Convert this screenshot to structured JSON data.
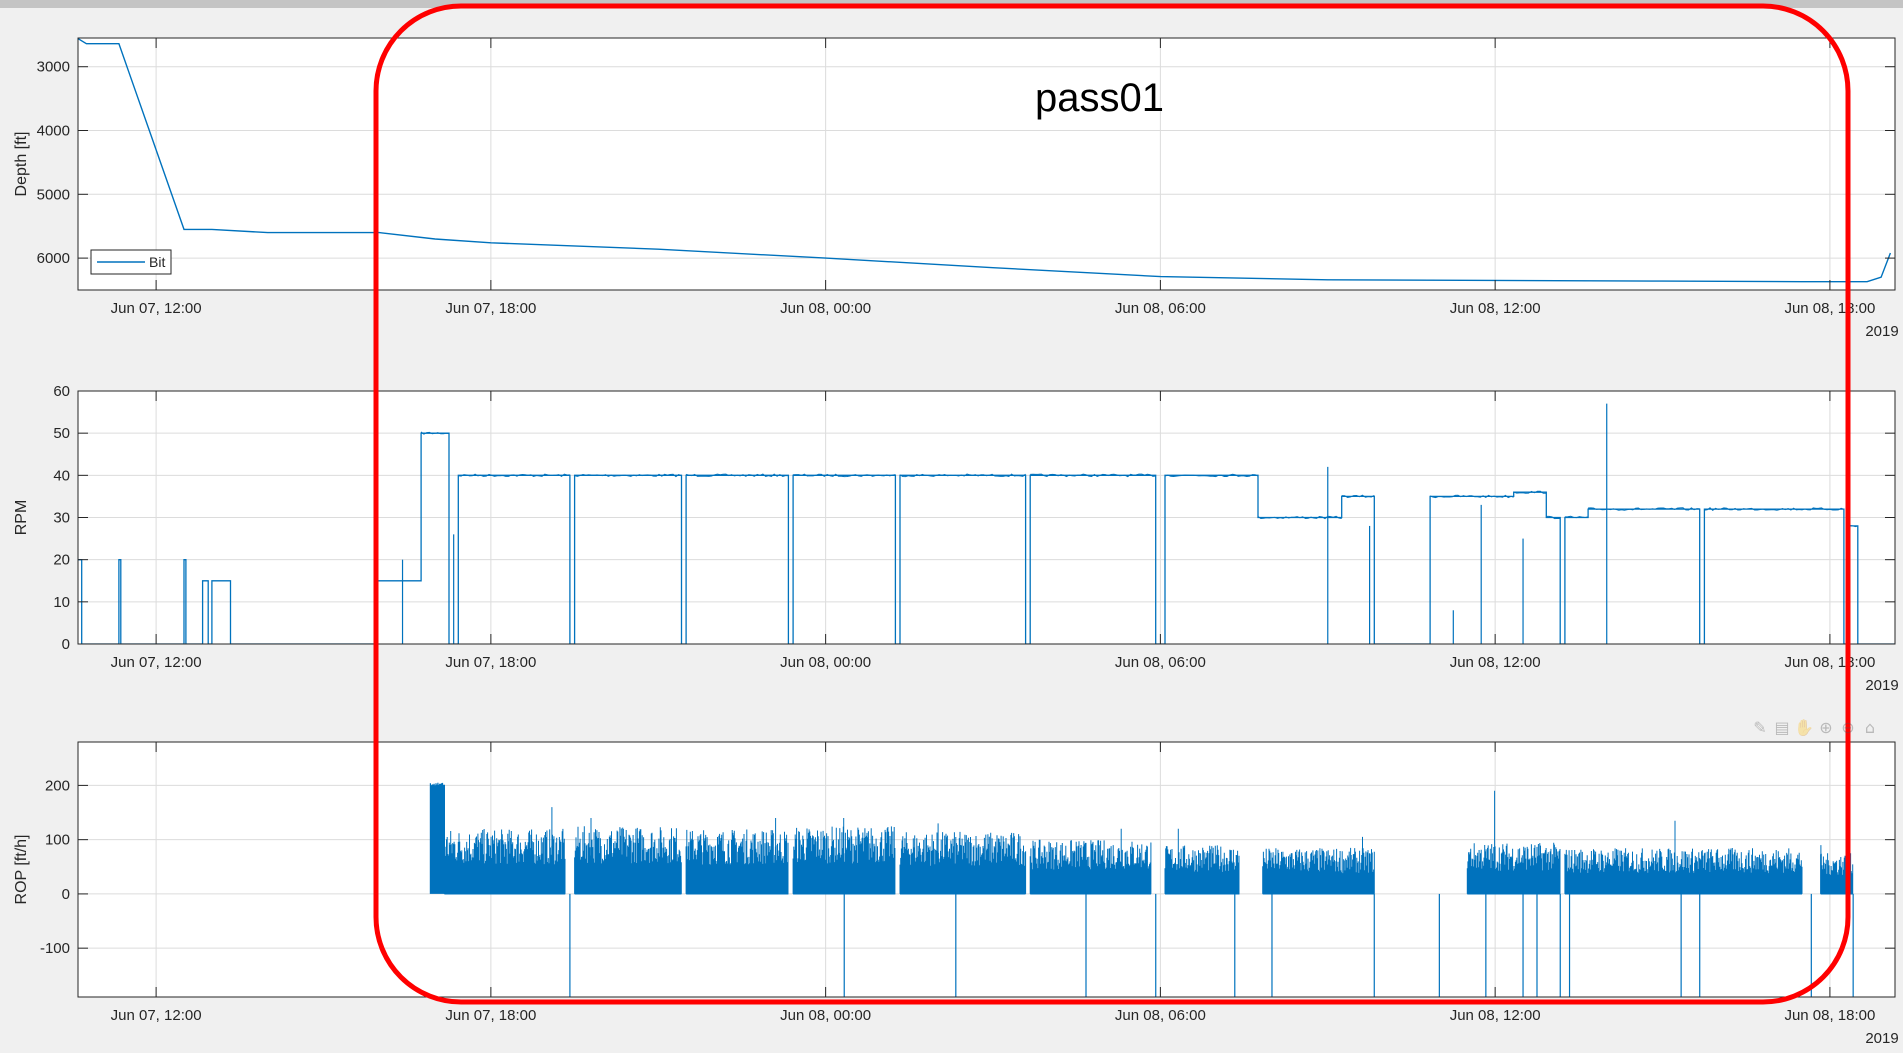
{
  "annotation": {
    "label": "pass01",
    "color": "#ff0000"
  },
  "toolbar": {
    "icons": [
      "✎",
      "▤",
      "✋",
      "⊕",
      "⊖",
      "⌂"
    ]
  },
  "style": {
    "series_color": "#0072bd",
    "grid_color": "#dcdcdc"
  },
  "chart_data": [
    {
      "type": "line",
      "ylabel": "Depth [ft]",
      "y_reversed": true,
      "ylim": [
        2550,
        6500
      ],
      "yticks": [
        3000,
        4000,
        5000,
        6000
      ],
      "xlim": [
        "2019-06-07T10:36",
        "2019-06-08T19:10"
      ],
      "xticks": [
        "2019-06-07T12:00",
        "2019-06-07T18:00",
        "2019-06-08T00:00",
        "2019-06-08T06:00",
        "2019-06-08T12:00",
        "2019-06-08T18:00"
      ],
      "xticklabels": [
        "Jun 07, 12:00",
        "Jun 07, 18:00",
        "Jun 08, 00:00",
        "Jun 08, 06:00",
        "Jun 08, 12:00",
        "Jun 08, 18:00"
      ],
      "year_label": "2019",
      "grid": true,
      "legend": {
        "position": "bottom-left",
        "entries": [
          "Bit"
        ]
      },
      "series": [
        {
          "name": "Bit",
          "x": [
            "2019-06-07T10:36",
            "2019-06-07T10:45",
            "2019-06-07T11:20",
            "2019-06-07T12:30",
            "2019-06-07T13:00",
            "2019-06-07T14:00",
            "2019-06-07T16:00",
            "2019-06-07T17:00",
            "2019-06-07T18:00",
            "2019-06-07T21:00",
            "2019-06-08T00:00",
            "2019-06-08T03:00",
            "2019-06-08T06:00",
            "2019-06-08T09:00",
            "2019-06-08T12:00",
            "2019-06-08T15:00",
            "2019-06-08T17:30",
            "2019-06-08T18:40",
            "2019-06-08T18:55",
            "2019-06-08T19:05"
          ],
          "y": [
            2560,
            2640,
            2640,
            5550,
            5550,
            5600,
            5600,
            5700,
            5760,
            5860,
            6000,
            6150,
            6290,
            6340,
            6350,
            6360,
            6370,
            6370,
            6300,
            5920
          ]
        }
      ]
    },
    {
      "type": "line",
      "ylabel": "RPM",
      "ylim": [
        0,
        60
      ],
      "yticks": [
        0,
        10,
        20,
        30,
        40,
        50,
        60
      ],
      "xlim": [
        "2019-06-07T10:36",
        "2019-06-08T19:10"
      ],
      "xticks": [
        "2019-06-07T12:00",
        "2019-06-07T18:00",
        "2019-06-08T00:00",
        "2019-06-08T06:00",
        "2019-06-08T12:00",
        "2019-06-08T18:00"
      ],
      "xticklabels": [
        "Jun 07, 12:00",
        "Jun 07, 18:00",
        "Jun 08, 00:00",
        "Jun 08, 06:00",
        "Jun 08, 12:00",
        "Jun 08, 18:00"
      ],
      "year_label": "2019",
      "grid": true,
      "segments": [
        [
          "2019-06-07T10:36",
          "2019-06-07T10:40",
          20
        ],
        [
          "2019-06-07T10:40",
          "2019-06-07T11:20",
          0
        ],
        [
          "2019-06-07T11:20",
          "2019-06-07T11:22",
          20
        ],
        [
          "2019-06-07T11:22",
          "2019-06-07T12:30",
          0
        ],
        [
          "2019-06-07T12:30",
          "2019-06-07T12:32",
          20
        ],
        [
          "2019-06-07T12:32",
          "2019-06-07T12:50",
          0
        ],
        [
          "2019-06-07T12:50",
          "2019-06-07T12:56",
          15
        ],
        [
          "2019-06-07T12:56",
          "2019-06-07T13:00",
          0
        ],
        [
          "2019-06-07T13:00",
          "2019-06-07T13:20",
          15
        ],
        [
          "2019-06-07T13:20",
          "2019-06-07T15:55",
          0
        ],
        [
          "2019-06-07T15:55",
          "2019-06-07T16:45",
          15
        ],
        [
          "2019-06-07T16:45",
          "2019-06-07T17:15",
          50
        ],
        [
          "2019-06-07T17:15",
          "2019-06-07T17:25",
          0
        ],
        [
          "2019-06-07T17:25",
          "2019-06-07T19:25",
          40
        ],
        [
          "2019-06-07T19:25",
          "2019-06-07T19:30",
          0
        ],
        [
          "2019-06-07T19:30",
          "2019-06-07T21:25",
          40
        ],
        [
          "2019-06-07T21:25",
          "2019-06-07T21:30",
          0
        ],
        [
          "2019-06-07T21:30",
          "2019-06-07T23:20",
          40
        ],
        [
          "2019-06-07T23:20",
          "2019-06-07T23:25",
          0
        ],
        [
          "2019-06-07T23:25",
          "2019-06-08T01:15",
          40
        ],
        [
          "2019-06-08T01:15",
          "2019-06-08T01:20",
          0
        ],
        [
          "2019-06-08T01:20",
          "2019-06-08T03:35",
          40
        ],
        [
          "2019-06-08T03:35",
          "2019-06-08T03:40",
          0
        ],
        [
          "2019-06-08T03:40",
          "2019-06-08T05:55",
          40
        ],
        [
          "2019-06-08T05:55",
          "2019-06-08T06:05",
          0
        ],
        [
          "2019-06-08T06:05",
          "2019-06-08T07:45",
          40
        ],
        [
          "2019-06-08T07:45",
          "2019-06-08T09:15",
          30
        ],
        [
          "2019-06-08T09:15",
          "2019-06-08T09:50",
          35
        ],
        [
          "2019-06-08T09:50",
          "2019-06-08T10:50",
          0
        ],
        [
          "2019-06-08T10:50",
          "2019-06-08T12:20",
          35
        ],
        [
          "2019-06-08T12:20",
          "2019-06-08T12:55",
          36
        ],
        [
          "2019-06-08T12:55",
          "2019-06-08T13:10",
          30
        ],
        [
          "2019-06-08T13:10",
          "2019-06-08T13:15",
          0
        ],
        [
          "2019-06-08T13:15",
          "2019-06-08T13:40",
          30
        ],
        [
          "2019-06-08T13:40",
          "2019-06-08T15:40",
          32
        ],
        [
          "2019-06-08T15:40",
          "2019-06-08T15:45",
          0
        ],
        [
          "2019-06-08T15:45",
          "2019-06-08T18:15",
          32
        ],
        [
          "2019-06-08T18:15",
          "2019-06-08T18:20",
          0
        ],
        [
          "2019-06-08T18:20",
          "2019-06-08T18:30",
          28
        ],
        [
          "2019-06-08T18:30",
          "2019-06-08T19:10",
          0
        ]
      ],
      "spikes": [
        [
          "2019-06-07T16:25",
          20
        ],
        [
          "2019-06-07T17:20",
          26
        ],
        [
          "2019-06-08T09:00",
          42
        ],
        [
          "2019-06-08T09:45",
          28
        ],
        [
          "2019-06-08T11:15",
          8
        ],
        [
          "2019-06-08T11:45",
          33
        ],
        [
          "2019-06-08T12:30",
          25
        ],
        [
          "2019-06-08T14:00",
          57
        ]
      ]
    },
    {
      "type": "line",
      "ylabel": "ROP [ft/h]",
      "ylim": [
        -190,
        280
      ],
      "yticks": [
        -100,
        0,
        100,
        200
      ],
      "xlim": [
        "2019-06-07T10:36",
        "2019-06-08T19:10"
      ],
      "xticks": [
        "2019-06-07T12:00",
        "2019-06-07T18:00",
        "2019-06-08T00:00",
        "2019-06-08T06:00",
        "2019-06-08T12:00",
        "2019-06-08T18:00"
      ],
      "xticklabels": [
        "Jun 07, 12:00",
        "Jun 07, 18:00",
        "Jun 08, 00:00",
        "Jun 08, 06:00",
        "Jun 08, 12:00",
        "Jun 08, 18:00"
      ],
      "year_label": "2019",
      "grid": true,
      "dense_blocks": [
        [
          "2019-06-07T17:10",
          "2019-06-07T19:20",
          120,
          160
        ],
        [
          "2019-06-07T19:30",
          "2019-06-07T21:25",
          125,
          140
        ],
        [
          "2019-06-07T21:30",
          "2019-06-07T23:20",
          120,
          140
        ],
        [
          "2019-06-07T23:25",
          "2019-06-08T01:15",
          125,
          140
        ],
        [
          "2019-06-08T01:20",
          "2019-06-08T03:35",
          115,
          130
        ],
        [
          "2019-06-08T03:40",
          "2019-06-08T05:50",
          100,
          120
        ],
        [
          "2019-06-08T06:05",
          "2019-06-08T07:25",
          90,
          120
        ],
        [
          "2019-06-08T07:50",
          "2019-06-08T09:50",
          85,
          105
        ],
        [
          "2019-06-08T11:30",
          "2019-06-08T13:10",
          95,
          190
        ],
        [
          "2019-06-08T13:15",
          "2019-06-08T17:30",
          85,
          135
        ],
        [
          "2019-06-08T17:50",
          "2019-06-08T18:25",
          75,
          90
        ]
      ],
      "level_steps": [
        [
          "2019-06-07T16:55",
          "2019-06-07T17:10",
          200,
          205
        ]
      ],
      "negative_spikes": [
        "2019-06-07T19:25",
        "2019-06-08T00:20",
        "2019-06-08T02:20",
        "2019-06-08T04:40",
        "2019-06-08T05:55",
        "2019-06-08T07:20",
        "2019-06-08T08:00",
        "2019-06-08T09:50",
        "2019-06-08T11:00",
        "2019-06-08T11:50",
        "2019-06-08T12:30",
        "2019-06-08T12:45",
        "2019-06-08T13:10",
        "2019-06-08T13:20",
        "2019-06-08T15:20",
        "2019-06-08T15:40",
        "2019-06-08T17:40",
        "2019-06-08T18:25"
      ]
    }
  ]
}
